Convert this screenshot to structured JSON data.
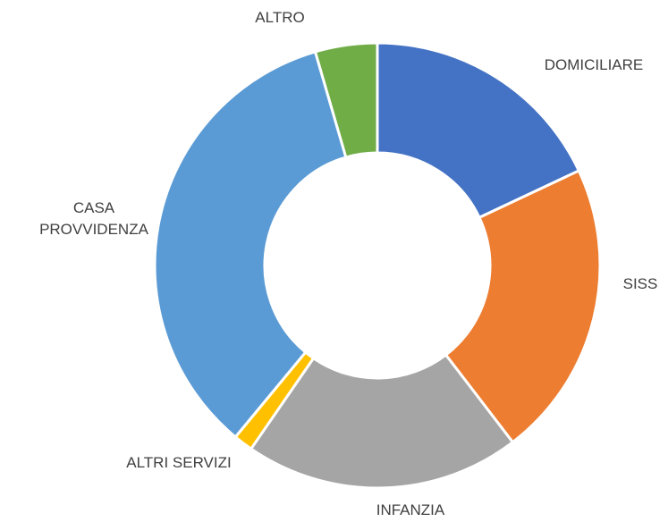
{
  "chart_data": {
    "type": "donut",
    "categories": [
      "DOMICILIARE",
      "SISS",
      "INFANZIA",
      "ALTRI SERVIZI",
      "CASA PROVVIDENZA",
      "ALTRO"
    ],
    "values": [
      18,
      21.6,
      20,
      1.4,
      34.5,
      4.5
    ],
    "colors": [
      "#4472c4",
      "#ed7d31",
      "#a5a5a5",
      "#ffc000",
      "#5b9bd5",
      "#70ad47"
    ]
  }
}
